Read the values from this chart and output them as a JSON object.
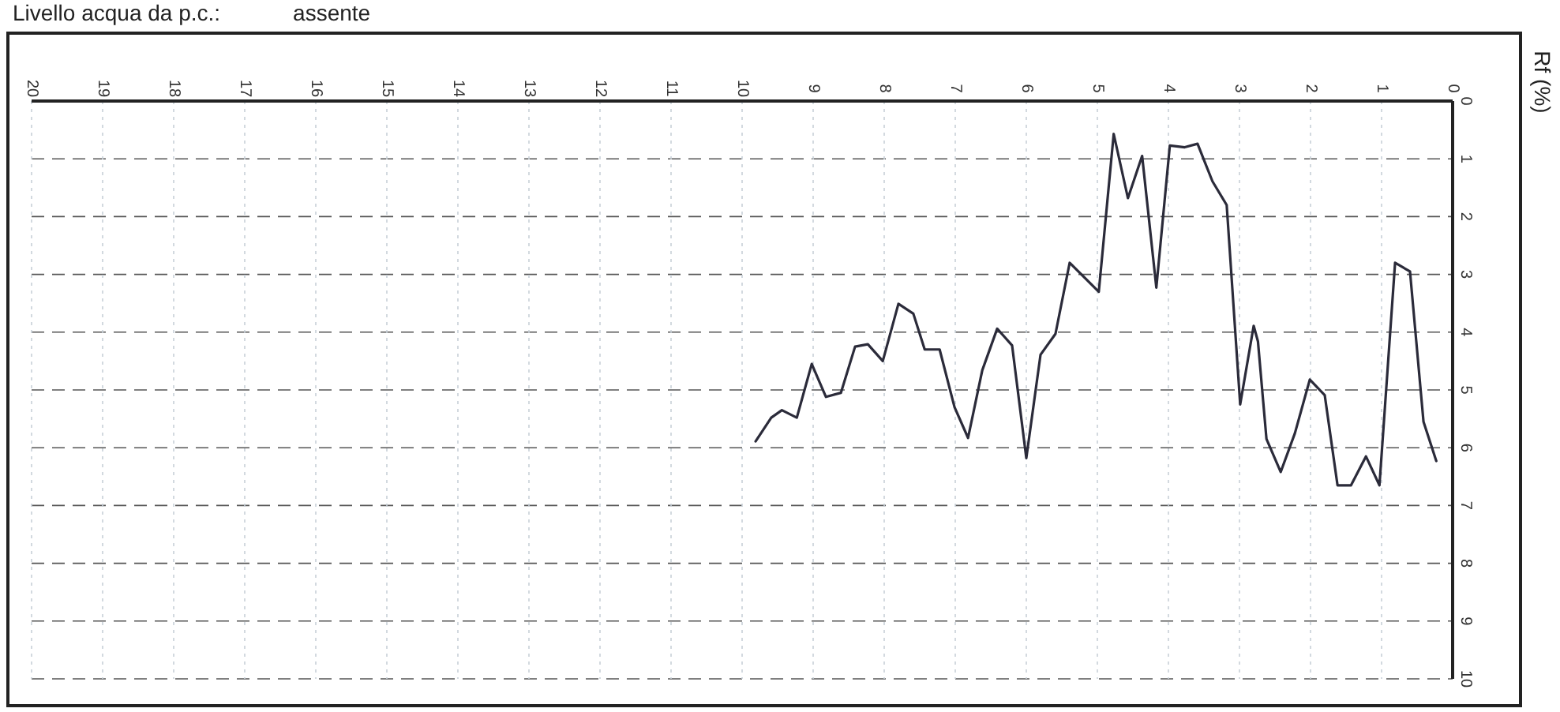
{
  "chart_data": {
    "type": "line",
    "title": "Livello acqua da p.c.:",
    "subtitle": "assente",
    "ylabel": "Rf (%)",
    "xlim": [
      20,
      0
    ],
    "xticks": [
      20,
      19,
      18,
      17,
      16,
      15,
      14,
      13,
      12,
      11,
      10,
      9,
      8,
      7,
      6,
      5,
      4,
      3,
      2,
      1,
      0
    ],
    "ylim": [
      10,
      0
    ],
    "yticks": [
      0,
      1,
      2,
      3,
      4,
      5,
      6,
      7,
      8,
      9,
      10
    ],
    "grid": true,
    "series": [
      {
        "color": "#2b2b3a",
        "x": [
          9.81,
          9.59,
          9.44,
          9.23,
          9.02,
          8.82,
          8.61,
          8.41,
          8.23,
          8.02,
          7.8,
          7.59,
          7.43,
          7.22,
          7.01,
          6.82,
          6.62,
          6.41,
          6.2,
          6.0,
          5.8,
          5.59,
          5.39,
          4.98,
          4.77,
          4.57,
          4.37,
          4.17,
          3.98,
          3.77,
          3.59,
          3.38,
          3.18,
          2.99,
          2.92,
          2.8,
          2.74,
          2.62,
          2.42,
          2.22,
          2.01,
          1.8,
          1.62,
          1.43,
          1.22,
          1.03,
          0.81,
          0.6,
          0.41,
          0.23
        ],
        "values": [
          5.89,
          5.48,
          5.35,
          5.48,
          4.55,
          5.12,
          5.05,
          4.25,
          4.21,
          4.5,
          3.51,
          3.68,
          4.3,
          4.3,
          5.3,
          5.83,
          4.66,
          3.94,
          4.23,
          6.18,
          4.39,
          4.03,
          2.8,
          3.3,
          0.57,
          1.68,
          0.95,
          3.23,
          0.77,
          0.8,
          0.74,
          1.39,
          1.8,
          5.25,
          4.75,
          3.89,
          4.16,
          5.85,
          6.42,
          5.75,
          4.82,
          5.09,
          6.65,
          6.65,
          6.15,
          6.65,
          2.8,
          2.95,
          5.55,
          6.23
        ]
      }
    ]
  }
}
